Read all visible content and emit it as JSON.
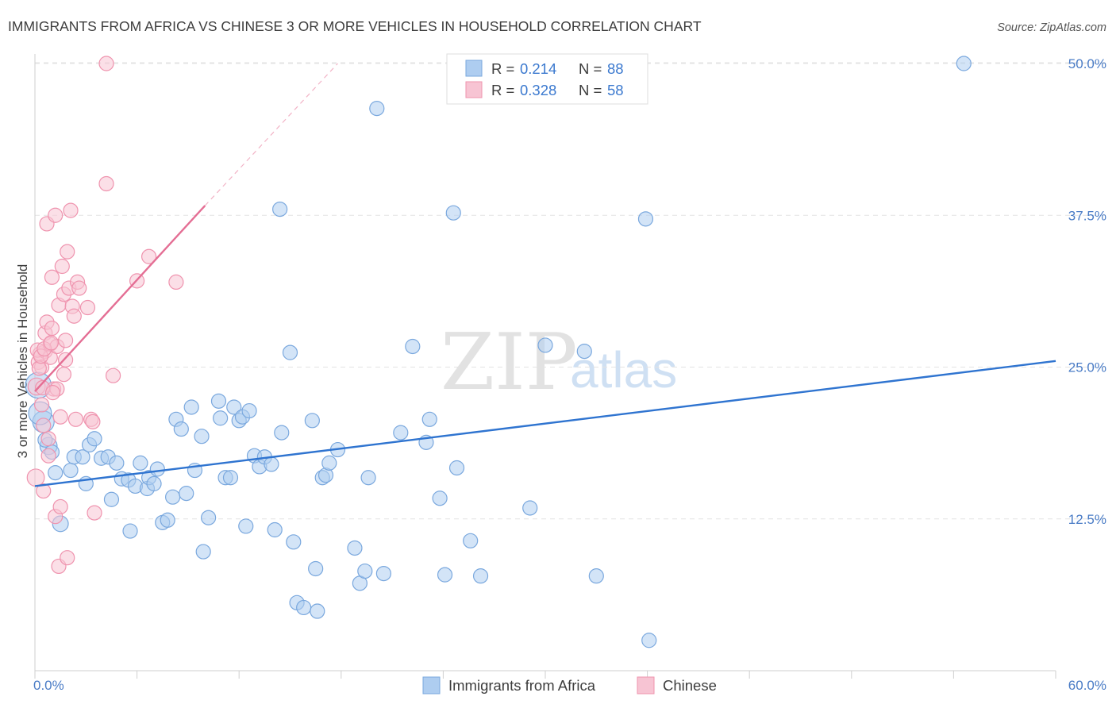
{
  "title": "IMMIGRANTS FROM AFRICA VS CHINESE 3 OR MORE VEHICLES IN HOUSEHOLD CORRELATION CHART",
  "source": "Source: ZipAtlas.com",
  "watermark": {
    "zip": "ZIP",
    "atlas": "atlas"
  },
  "colors": {
    "africa_fill": "#aecdf0",
    "africa_stroke": "#7aa8de",
    "africa_line": "#2f74d0",
    "chinese_fill": "#f7c4d3",
    "chinese_stroke": "#ef93ae",
    "chinese_line": "#e46e94",
    "grid": "#e3e3e3",
    "axis": "#cfcfcf",
    "tick_label": "#4a7cc6"
  },
  "legend": {
    "rows": [
      {
        "r_label": "R = ",
        "r_value": "0.214",
        "n_label": "N = ",
        "n_value": "88"
      },
      {
        "r_label": "R = ",
        "r_value": "0.328",
        "n_label": "N = ",
        "n_value": "58"
      }
    ]
  },
  "bottom_legend": {
    "africa": "Immigrants from Africa",
    "chinese": "Chinese"
  },
  "chart_data": {
    "type": "scatter",
    "title": "IMMIGRANTS FROM AFRICA VS CHINESE 3 OR MORE VEHICLES IN HOUSEHOLD CORRELATION CHART",
    "xlabel": "",
    "ylabel": "3 or more Vehicles in Household",
    "xlim": [
      0,
      60
    ],
    "ylim": [
      0,
      52
    ],
    "x_tick_labels": [
      "0.0%",
      "60.0%"
    ],
    "y_ticks": [
      12.5,
      25.0,
      37.5,
      50.0
    ],
    "y_tick_labels": [
      "12.5%",
      "25.0%",
      "37.5%",
      "50.0%"
    ],
    "grid": "horizontal dashed",
    "legend_position": "top-center",
    "series": [
      {
        "name": "Immigrants from Africa",
        "color": "#aecdf0",
        "R": 0.214,
        "N": 88,
        "trend": {
          "x": [
            0,
            60
          ],
          "y": [
            15.2,
            25.5
          ],
          "style": "solid"
        },
        "points": [
          [
            0.2,
            23.5,
            18
          ],
          [
            0.5,
            20.5,
            15
          ],
          [
            0.8,
            18.5,
            12
          ],
          [
            0.6,
            19.0,
            10
          ],
          [
            1.0,
            18.0,
            10
          ],
          [
            1.2,
            16.3,
            10
          ],
          [
            1.5,
            12.1,
            11
          ],
          [
            2.1,
            16.5,
            10
          ],
          [
            2.3,
            17.6,
            10
          ],
          [
            2.8,
            17.6,
            10
          ],
          [
            3.0,
            15.4,
            10
          ],
          [
            3.2,
            18.6,
            10
          ],
          [
            3.5,
            19.1,
            10
          ],
          [
            3.9,
            17.5,
            10
          ],
          [
            4.3,
            17.6,
            10
          ],
          [
            4.5,
            14.1,
            10
          ],
          [
            4.8,
            17.1,
            10
          ],
          [
            5.1,
            15.8,
            10
          ],
          [
            5.5,
            15.7,
            10
          ],
          [
            5.6,
            11.5,
            10
          ],
          [
            5.9,
            15.2,
            10
          ],
          [
            6.2,
            17.1,
            10
          ],
          [
            6.6,
            15.0,
            10
          ],
          [
            6.7,
            15.9,
            10
          ],
          [
            7.0,
            15.4,
            10
          ],
          [
            7.2,
            16.6,
            10
          ],
          [
            7.5,
            12.2,
            10
          ],
          [
            7.8,
            12.4,
            10
          ],
          [
            8.1,
            14.3,
            10
          ],
          [
            8.3,
            20.7,
            10
          ],
          [
            8.6,
            19.9,
            10
          ],
          [
            8.9,
            14.6,
            10
          ],
          [
            9.2,
            21.7,
            10
          ],
          [
            9.4,
            16.5,
            10
          ],
          [
            9.8,
            19.3,
            10
          ],
          [
            9.9,
            9.8,
            10
          ],
          [
            10.2,
            12.6,
            10
          ],
          [
            10.8,
            22.2,
            10
          ],
          [
            10.9,
            20.8,
            10
          ],
          [
            11.2,
            15.9,
            10
          ],
          [
            11.5,
            15.9,
            10
          ],
          [
            11.7,
            21.7,
            10
          ],
          [
            12.0,
            20.6,
            10
          ],
          [
            12.2,
            20.9,
            10
          ],
          [
            12.4,
            11.9,
            10
          ],
          [
            12.6,
            21.4,
            10
          ],
          [
            12.9,
            17.7,
            10
          ],
          [
            13.2,
            16.8,
            10
          ],
          [
            13.5,
            17.6,
            10
          ],
          [
            13.9,
            17.0,
            10
          ],
          [
            14.1,
            11.6,
            10
          ],
          [
            14.4,
            38.0,
            10
          ],
          [
            14.5,
            19.6,
            10
          ],
          [
            15.0,
            26.2,
            10
          ],
          [
            15.2,
            10.6,
            10
          ],
          [
            15.4,
            5.6,
            10
          ],
          [
            15.8,
            5.2,
            10
          ],
          [
            16.3,
            20.6,
            10
          ],
          [
            16.5,
            8.4,
            10
          ],
          [
            16.6,
            4.9,
            10
          ],
          [
            16.9,
            15.9,
            10
          ],
          [
            17.1,
            16.1,
            10
          ],
          [
            17.3,
            17.1,
            10
          ],
          [
            17.8,
            18.2,
            10
          ],
          [
            18.8,
            10.1,
            10
          ],
          [
            19.1,
            7.2,
            10
          ],
          [
            19.4,
            8.2,
            10
          ],
          [
            19.6,
            15.9,
            10
          ],
          [
            20.1,
            46.3,
            10
          ],
          [
            20.5,
            8.0,
            10
          ],
          [
            21.5,
            19.6,
            10
          ],
          [
            22.2,
            26.7,
            10
          ],
          [
            23.0,
            18.8,
            10
          ],
          [
            23.2,
            20.7,
            10
          ],
          [
            23.8,
            14.2,
            10
          ],
          [
            24.1,
            7.9,
            10
          ],
          [
            24.6,
            37.7,
            10
          ],
          [
            24.8,
            16.7,
            10
          ],
          [
            25.6,
            10.7,
            10
          ],
          [
            26.2,
            7.8,
            10
          ],
          [
            29.1,
            13.4,
            10
          ],
          [
            30.0,
            26.8,
            10
          ],
          [
            32.3,
            26.3,
            10
          ],
          [
            33.0,
            7.8,
            10
          ],
          [
            35.9,
            37.2,
            10
          ],
          [
            36.1,
            2.5,
            10
          ],
          [
            54.6,
            50.0,
            10
          ],
          [
            0.3,
            21.2,
            16
          ]
        ]
      },
      {
        "name": "Chinese",
        "color": "#f7c4d3",
        "R": 0.328,
        "N": 58,
        "trend": {
          "x": [
            0,
            10
          ],
          "y": [
            23.0,
            38.3
          ],
          "dashed_to": [
            17.8,
            50.0
          ]
        },
        "points": [
          [
            0.05,
            15.9,
            12
          ],
          [
            0.1,
            23.4,
            12
          ],
          [
            0.2,
            25.4,
            10
          ],
          [
            0.3,
            26.1,
            10
          ],
          [
            0.4,
            25.0,
            10
          ],
          [
            0.4,
            21.9,
            10
          ],
          [
            0.5,
            20.2,
            10
          ],
          [
            0.5,
            14.8,
            10
          ],
          [
            0.6,
            26.3,
            10
          ],
          [
            0.6,
            27.8,
            10
          ],
          [
            0.7,
            36.8,
            10
          ],
          [
            0.7,
            28.7,
            10
          ],
          [
            0.8,
            19.1,
            10
          ],
          [
            0.8,
            17.7,
            10
          ],
          [
            0.9,
            25.8,
            10
          ],
          [
            0.9,
            26.9,
            10
          ],
          [
            1.0,
            32.4,
            10
          ],
          [
            1.0,
            28.2,
            10
          ],
          [
            1.1,
            23.2,
            10
          ],
          [
            1.2,
            37.5,
            10
          ],
          [
            1.2,
            12.7,
            10
          ],
          [
            1.3,
            26.7,
            10
          ],
          [
            1.3,
            23.2,
            10
          ],
          [
            1.4,
            30.1,
            10
          ],
          [
            1.4,
            8.6,
            10
          ],
          [
            1.5,
            20.9,
            10
          ],
          [
            1.5,
            13.5,
            10
          ],
          [
            1.6,
            33.3,
            10
          ],
          [
            1.7,
            24.4,
            10
          ],
          [
            1.7,
            31.0,
            10
          ],
          [
            1.8,
            27.2,
            10
          ],
          [
            1.8,
            25.6,
            10
          ],
          [
            1.9,
            34.5,
            10
          ],
          [
            1.9,
            9.3,
            10
          ],
          [
            2.0,
            31.5,
            10
          ],
          [
            2.1,
            37.9,
            10
          ],
          [
            2.2,
            30.0,
            10
          ],
          [
            2.3,
            29.2,
            10
          ],
          [
            2.4,
            20.7,
            10
          ],
          [
            2.5,
            32.0,
            10
          ],
          [
            2.6,
            31.5,
            10
          ],
          [
            3.1,
            29.9,
            10
          ],
          [
            3.3,
            20.7,
            10
          ],
          [
            3.4,
            20.5,
            10
          ],
          [
            3.5,
            13.0,
            10
          ],
          [
            4.2,
            50.0,
            10
          ],
          [
            4.2,
            40.1,
            10
          ],
          [
            4.6,
            24.3,
            10
          ],
          [
            6.0,
            32.1,
            10
          ],
          [
            6.7,
            34.1,
            10
          ],
          [
            8.3,
            32.0,
            10
          ],
          [
            0.15,
            26.4,
            10
          ],
          [
            0.25,
            24.9,
            10
          ],
          [
            0.35,
            25.9,
            10
          ],
          [
            0.55,
            26.5,
            10
          ],
          [
            0.45,
            23.3,
            10
          ],
          [
            1.05,
            22.9,
            10
          ],
          [
            0.95,
            27.0,
            10
          ]
        ]
      }
    ]
  }
}
